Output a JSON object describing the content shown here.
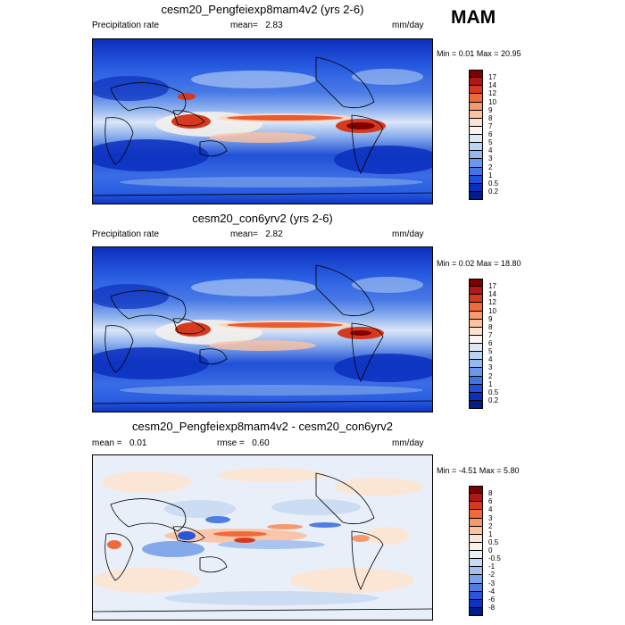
{
  "season_label": "MAM",
  "units": "mm/day",
  "panels": [
    {
      "title": "cesm20_Pengfeiexp8mam4v2 (yrs 2-6)",
      "left_label": "Precipitation rate",
      "mean_label": "mean=",
      "mean_value": "2.83",
      "min_max_text": "Min =   0.01 Max =  20.95",
      "colorbar": {
        "labels": [
          "17",
          "14",
          "12",
          "10",
          "9",
          "8",
          "7",
          "6",
          "5",
          "4",
          "3",
          "2",
          "1",
          "0.5",
          "0.2"
        ],
        "colors": [
          "#800000",
          "#b01818",
          "#d63a1e",
          "#ee6a3c",
          "#f69a6e",
          "#fbc2a2",
          "#fde4d2",
          "#fcf4ee",
          "#dde8f7",
          "#bcd3f2",
          "#94b8ef",
          "#6b98ea",
          "#4274e6",
          "#1e4fd8",
          "#0a2fbe",
          "#001c8a"
        ]
      }
    },
    {
      "title": "cesm20_con6yrv2 (yrs 2-6)",
      "left_label": "Precipitation rate",
      "mean_label": "mean=",
      "mean_value": "2.82",
      "min_max_text": "Min =   0.02 Max =  18.80",
      "colorbar": {
        "labels": [
          "17",
          "14",
          "12",
          "10",
          "9",
          "8",
          "7",
          "6",
          "5",
          "4",
          "3",
          "2",
          "1",
          "0.5",
          "0.2"
        ],
        "colors": [
          "#800000",
          "#b01818",
          "#d63a1e",
          "#ee6a3c",
          "#f69a6e",
          "#fbc2a2",
          "#fde4d2",
          "#fcf4ee",
          "#dde8f7",
          "#bcd3f2",
          "#94b8ef",
          "#6b98ea",
          "#4274e6",
          "#1e4fd8",
          "#0a2fbe",
          "#001c8a"
        ]
      }
    },
    {
      "title": "cesm20_Pengfeiexp8mam4v2 - cesm20_con6yrv2",
      "mean_label": "mean =",
      "mean_value": "0.01",
      "rmse_label": "rmse =",
      "rmse_value": "0.60",
      "min_max_text": "Min =  -4.51 Max =   5.80",
      "colorbar": {
        "labels": [
          "8",
          "6",
          "4",
          "3",
          "2",
          "1",
          "0.5",
          "0",
          "-0.5",
          "-1",
          "-2",
          "-3",
          "-4",
          "-6",
          "-8"
        ],
        "colors": [
          "#800000",
          "#b01818",
          "#d63a1e",
          "#ee6a3c",
          "#f69a6e",
          "#fbc2a2",
          "#fde4d2",
          "#fdf0e6",
          "#e6eef9",
          "#c9daf3",
          "#a3c0ef",
          "#7aa2ea",
          "#4e7ee4",
          "#2856d6",
          "#0c34be",
          "#001c8a"
        ]
      }
    }
  ],
  "chart_data": [
    {
      "type": "heatmap",
      "title": "cesm20_Pengfeiexp8mam4v2 (yrs 2-6)",
      "variable": "Precipitation rate",
      "units": "mm/day",
      "mean": 2.83,
      "min": 0.01,
      "max": 20.95,
      "levels": [
        0.2,
        0.5,
        1,
        2,
        3,
        4,
        5,
        6,
        7,
        8,
        9,
        10,
        12,
        14,
        17
      ]
    },
    {
      "type": "heatmap",
      "title": "cesm20_con6yrv2 (yrs 2-6)",
      "variable": "Precipitation rate",
      "units": "mm/day",
      "mean": 2.82,
      "min": 0.02,
      "max": 18.8,
      "levels": [
        0.2,
        0.5,
        1,
        2,
        3,
        4,
        5,
        6,
        7,
        8,
        9,
        10,
        12,
        14,
        17
      ]
    },
    {
      "type": "heatmap",
      "title": "cesm20_Pengfeiexp8mam4v2 - cesm20_con6yrv2",
      "units": "mm/day",
      "mean": 0.01,
      "rmse": 0.6,
      "min": -4.51,
      "max": 5.8,
      "levels": [
        -8,
        -6,
        -4,
        -3,
        -2,
        -1,
        -0.5,
        0,
        0.5,
        1,
        2,
        3,
        4,
        6,
        8
      ]
    }
  ]
}
